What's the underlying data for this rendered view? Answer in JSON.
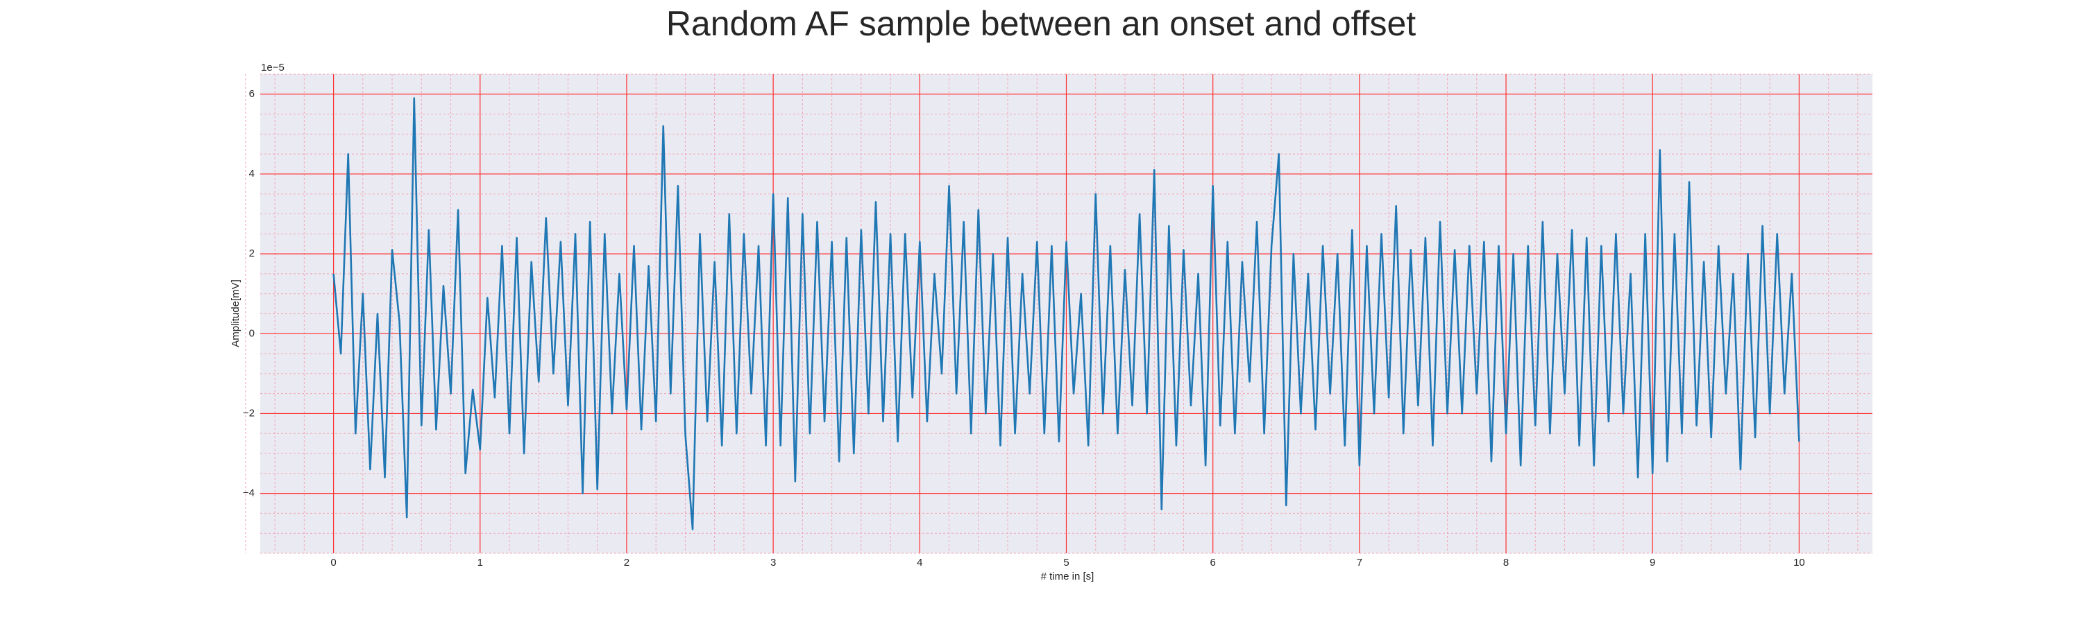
{
  "chart_data": {
    "type": "line",
    "title": "Random AF sample between an onset and offset",
    "xlabel": "# time in [s]",
    "ylabel": "Amplitude[mV]",
    "y_offset_label": "1e−5",
    "color": "#1f77b4",
    "grid": true,
    "minor_grid": true,
    "xlim": [
      -0.5,
      10.5
    ],
    "ylim": [
      -5.5,
      6.5
    ],
    "xticks": [
      0,
      1,
      2,
      3,
      4,
      5,
      6,
      7,
      8,
      9,
      10
    ],
    "yticks": [
      {
        "value": -4,
        "label": "−4"
      },
      {
        "value": -2,
        "label": "−2"
      },
      0,
      2,
      4,
      6
    ],
    "x": [
      0,
      0.05,
      0.1,
      0.15,
      0.2,
      0.25,
      0.3,
      0.35,
      0.4,
      0.45,
      0.5,
      0.55,
      0.6,
      0.65,
      0.7,
      0.75,
      0.8,
      0.85,
      0.9,
      0.95,
      1,
      1.05,
      1.1,
      1.15,
      1.2,
      1.25,
      1.3,
      1.35,
      1.4,
      1.45,
      1.5,
      1.55,
      1.6,
      1.65,
      1.7,
      1.75,
      1.8,
      1.85,
      1.9,
      1.95,
      2,
      2.05,
      2.1,
      2.15,
      2.2,
      2.25,
      2.3,
      2.35,
      2.4,
      2.45,
      2.5,
      2.55,
      2.6,
      2.65,
      2.7,
      2.75,
      2.8,
      2.85,
      2.9,
      2.95,
      3,
      3.05,
      3.1,
      3.15,
      3.2,
      3.25,
      3.3,
      3.35,
      3.4,
      3.45,
      3.5,
      3.55,
      3.6,
      3.65,
      3.7,
      3.75,
      3.8,
      3.85,
      3.9,
      3.95,
      4,
      4.05,
      4.1,
      4.15,
      4.2,
      4.25,
      4.3,
      4.35,
      4.4,
      4.45,
      4.5,
      4.55,
      4.6,
      4.65,
      4.7,
      4.75,
      4.8,
      4.85,
      4.9,
      4.95,
      5,
      5.05,
      5.1,
      5.15,
      5.2,
      5.25,
      5.3,
      5.35,
      5.4,
      5.45,
      5.5,
      5.55,
      5.6,
      5.65,
      5.7,
      5.75,
      5.8,
      5.85,
      5.9,
      5.95,
      6,
      6.05,
      6.1,
      6.15,
      6.2,
      6.25,
      6.3,
      6.35,
      6.4,
      6.45,
      6.5,
      6.55,
      6.6,
      6.65,
      6.7,
      6.75,
      6.8,
      6.85,
      6.9,
      6.95,
      7,
      7.05,
      7.1,
      7.15,
      7.2,
      7.25,
      7.3,
      7.35,
      7.4,
      7.45,
      7.5,
      7.55,
      7.6,
      7.65,
      7.7,
      7.75,
      7.8,
      7.85,
      7.9,
      7.95,
      8,
      8.05,
      8.1,
      8.15,
      8.2,
      8.25,
      8.3,
      8.35,
      8.4,
      8.45,
      8.5,
      8.55,
      8.6,
      8.65,
      8.7,
      8.75,
      8.8,
      8.85,
      8.9,
      8.95,
      9,
      9.05,
      9.1,
      9.15,
      9.2,
      9.25,
      9.3,
      9.35,
      9.4,
      9.45,
      9.5,
      9.55,
      9.6,
      9.65,
      9.7,
      9.75,
      9.8,
      9.85,
      9.9,
      9.95,
      10
    ],
    "values": [
      1.5,
      -0.5,
      4.5,
      -2.5,
      1.0,
      -3.4,
      0.5,
      -3.6,
      2.1,
      0.3,
      -4.6,
      5.9,
      -2.3,
      2.6,
      -2.4,
      1.2,
      -1.5,
      3.1,
      -3.5,
      -1.4,
      -2.9,
      0.9,
      -1.6,
      2.2,
      -2.5,
      2.4,
      -3.0,
      1.8,
      -1.2,
      2.9,
      -1.0,
      2.3,
      -1.8,
      2.5,
      -4.0,
      2.8,
      -3.9,
      2.5,
      -2.0,
      1.5,
      -1.9,
      2.2,
      -2.4,
      1.7,
      -2.2,
      5.2,
      -1.5,
      3.7,
      -2.5,
      -4.9,
      2.5,
      -2.2,
      1.8,
      -2.8,
      3.0,
      -2.5,
      2.5,
      -1.5,
      2.2,
      -2.8,
      3.5,
      -2.8,
      3.4,
      -3.7,
      3.0,
      -2.5,
      2.8,
      -2.2,
      2.3,
      -3.2,
      2.4,
      -3.0,
      2.6,
      -2.0,
      3.3,
      -2.2,
      2.5,
      -2.7,
      2.5,
      -1.6,
      2.3,
      -2.2,
      1.5,
      -1.0,
      3.7,
      -1.5,
      2.8,
      -2.5,
      3.1,
      -2.0,
      2.0,
      -2.8,
      2.4,
      -2.5,
      1.5,
      -1.5,
      2.3,
      -2.5,
      2.2,
      -2.7,
      2.3,
      -1.5,
      1.0,
      -2.8,
      3.5,
      -2.0,
      2.2,
      -2.5,
      1.6,
      -1.8,
      3.0,
      -2.0,
      4.1,
      -4.4,
      2.7,
      -2.8,
      2.1,
      -1.8,
      1.5,
      -3.3,
      3.7,
      -2.3,
      2.3,
      -2.5,
      1.8,
      -1.2,
      2.8,
      -2.5,
      2.2,
      4.5,
      -4.3,
      2.0,
      -2.0,
      1.5,
      -2.4,
      2.2,
      -1.5,
      2.0,
      -2.8,
      2.6,
      -3.3,
      2.2,
      -2.0,
      2.5,
      -1.6,
      3.2,
      -2.5,
      2.1,
      -1.8,
      2.4,
      -2.8,
      2.8,
      -2.0,
      2.1,
      -2.0,
      2.2,
      -1.5,
      2.3,
      -3.2,
      2.2,
      -2.5,
      2.0,
      -3.3,
      2.2,
      -2.3,
      2.8,
      -2.5,
      2.0,
      -1.5,
      2.6,
      -2.8,
      2.4,
      -3.3,
      2.2,
      -2.2,
      2.5,
      -2.0,
      1.5,
      -3.6,
      2.5,
      -3.5,
      4.6,
      -3.2,
      2.5,
      -2.5,
      3.8,
      -2.3,
      1.8,
      -2.6,
      2.2,
      -1.5,
      1.5,
      -3.4,
      2.0,
      -2.6,
      2.7,
      -2.0,
      2.5,
      -1.5,
      1.5,
      -2.7
    ]
  }
}
